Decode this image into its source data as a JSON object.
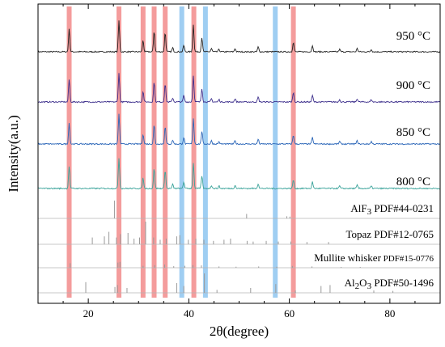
{
  "chart_data": {
    "type": "line",
    "title": "",
    "xlabel": "2θ(degree)",
    "ylabel": "Intensity(a.u.)",
    "xlim": [
      10,
      90
    ],
    "x_ticks": [
      20,
      40,
      60,
      80
    ],
    "y_ticks_shown": false,
    "grid": false,
    "legend": "none",
    "highlight_bands": [
      {
        "x": 16.2,
        "color": "#f28b8b"
      },
      {
        "x": 26.1,
        "color": "#f28b8b"
      },
      {
        "x": 30.9,
        "color": "#f28b8b"
      },
      {
        "x": 33.1,
        "color": "#f28b8b"
      },
      {
        "x": 35.3,
        "color": "#f28b8b"
      },
      {
        "x": 38.6,
        "color": "#8ec5f0"
      },
      {
        "x": 41.0,
        "color": "#f28b8b"
      },
      {
        "x": 43.3,
        "color": "#8ec5f0"
      },
      {
        "x": 57.2,
        "color": "#8ec5f0"
      },
      {
        "x": 60.8,
        "color": "#f28b8b"
      }
    ],
    "series": [
      {
        "name": "950 °C",
        "color": "#222222",
        "peaks": [
          {
            "x": 16.2,
            "h": 28
          },
          {
            "x": 26.1,
            "h": 38
          },
          {
            "x": 30.9,
            "h": 14
          },
          {
            "x": 33.1,
            "h": 26
          },
          {
            "x": 35.3,
            "h": 24
          },
          {
            "x": 36.8,
            "h": 5
          },
          {
            "x": 39.0,
            "h": 8
          },
          {
            "x": 40.9,
            "h": 34
          },
          {
            "x": 42.6,
            "h": 18
          },
          {
            "x": 44.5,
            "h": 4
          },
          {
            "x": 46.0,
            "h": 3
          },
          {
            "x": 49.2,
            "h": 4
          },
          {
            "x": 53.8,
            "h": 6
          },
          {
            "x": 60.8,
            "h": 12
          },
          {
            "x": 64.6,
            "h": 8
          },
          {
            "x": 70.0,
            "h": 3
          },
          {
            "x": 73.5,
            "h": 4
          },
          {
            "x": 76.3,
            "h": 3
          }
        ]
      },
      {
        "name": "900 °C",
        "color": "#3d2f8c",
        "peaks": [
          {
            "x": 16.2,
            "h": 28
          },
          {
            "x": 26.1,
            "h": 36
          },
          {
            "x": 30.9,
            "h": 13
          },
          {
            "x": 33.1,
            "h": 25
          },
          {
            "x": 35.3,
            "h": 23
          },
          {
            "x": 36.8,
            "h": 5
          },
          {
            "x": 39.0,
            "h": 8
          },
          {
            "x": 40.9,
            "h": 33
          },
          {
            "x": 42.6,
            "h": 17
          },
          {
            "x": 44.5,
            "h": 4
          },
          {
            "x": 46.0,
            "h": 3
          },
          {
            "x": 49.2,
            "h": 4
          },
          {
            "x": 53.8,
            "h": 6
          },
          {
            "x": 60.8,
            "h": 12
          },
          {
            "x": 64.6,
            "h": 8
          },
          {
            "x": 70.0,
            "h": 3
          },
          {
            "x": 73.5,
            "h": 4
          },
          {
            "x": 76.3,
            "h": 3
          }
        ]
      },
      {
        "name": "850 °C",
        "color": "#2b66b8",
        "peaks": [
          {
            "x": 16.2,
            "h": 26
          },
          {
            "x": 26.1,
            "h": 37
          },
          {
            "x": 30.9,
            "h": 12
          },
          {
            "x": 33.1,
            "h": 24
          },
          {
            "x": 35.3,
            "h": 22
          },
          {
            "x": 36.8,
            "h": 5
          },
          {
            "x": 39.0,
            "h": 8
          },
          {
            "x": 40.9,
            "h": 32
          },
          {
            "x": 42.6,
            "h": 16
          },
          {
            "x": 44.5,
            "h": 4
          },
          {
            "x": 46.0,
            "h": 3
          },
          {
            "x": 49.2,
            "h": 4
          },
          {
            "x": 53.8,
            "h": 6
          },
          {
            "x": 60.8,
            "h": 11
          },
          {
            "x": 64.6,
            "h": 8
          },
          {
            "x": 70.0,
            "h": 3
          },
          {
            "x": 73.5,
            "h": 4
          },
          {
            "x": 76.3,
            "h": 3
          }
        ]
      },
      {
        "name": "800 °C",
        "color": "#3aa39a",
        "peaks": [
          {
            "x": 16.2,
            "h": 28
          },
          {
            "x": 26.1,
            "h": 38
          },
          {
            "x": 30.9,
            "h": 13
          },
          {
            "x": 33.1,
            "h": 25
          },
          {
            "x": 35.3,
            "h": 23
          },
          {
            "x": 36.8,
            "h": 5
          },
          {
            "x": 39.0,
            "h": 8
          },
          {
            "x": 40.9,
            "h": 32
          },
          {
            "x": 42.6,
            "h": 16
          },
          {
            "x": 44.5,
            "h": 4
          },
          {
            "x": 46.0,
            "h": 3
          },
          {
            "x": 49.2,
            "h": 4
          },
          {
            "x": 53.8,
            "h": 6
          },
          {
            "x": 60.8,
            "h": 11
          },
          {
            "x": 64.6,
            "h": 8
          },
          {
            "x": 70.0,
            "h": 3
          },
          {
            "x": 73.5,
            "h": 4
          },
          {
            "x": 76.3,
            "h": 3
          }
        ]
      }
    ],
    "reference_patterns": [
      {
        "name": "AlF3 PDF#44-0231",
        "label_main": "AlF",
        "label_sub": "3",
        "label_rest": "PDF#44-0231",
        "sticks": [
          {
            "x": 25.2,
            "h": 1.0
          },
          {
            "x": 51.5,
            "h": 0.25
          },
          {
            "x": 59.5,
            "h": 0.12
          },
          {
            "x": 60.1,
            "h": 0.1
          }
        ]
      },
      {
        "name": "Topaz PDF#12-0765",
        "label_main": "Topaz PDF#12-0765",
        "sticks": [
          {
            "x": 20.8,
            "h": 0.3
          },
          {
            "x": 23.2,
            "h": 0.35
          },
          {
            "x": 24.1,
            "h": 0.55
          },
          {
            "x": 25.6,
            "h": 0.3
          },
          {
            "x": 26.4,
            "h": 0.45
          },
          {
            "x": 27.9,
            "h": 0.5
          },
          {
            "x": 29.1,
            "h": 0.25
          },
          {
            "x": 30.2,
            "h": 0.3
          },
          {
            "x": 31.4,
            "h": 1.0
          },
          {
            "x": 33.0,
            "h": 0.3
          },
          {
            "x": 34.3,
            "h": 0.2
          },
          {
            "x": 35.5,
            "h": 0.25
          },
          {
            "x": 37.6,
            "h": 0.35
          },
          {
            "x": 38.2,
            "h": 0.4
          },
          {
            "x": 39.9,
            "h": 0.2
          },
          {
            "x": 41.4,
            "h": 0.25
          },
          {
            "x": 43.0,
            "h": 0.2
          },
          {
            "x": 44.9,
            "h": 0.15
          },
          {
            "x": 47.0,
            "h": 0.2
          },
          {
            "x": 48.3,
            "h": 0.25
          },
          {
            "x": 51.6,
            "h": 0.15
          },
          {
            "x": 52.8,
            "h": 0.12
          },
          {
            "x": 55.4,
            "h": 0.15
          },
          {
            "x": 57.8,
            "h": 0.12
          },
          {
            "x": 60.3,
            "h": 0.12
          },
          {
            "x": 63.5,
            "h": 0.1
          },
          {
            "x": 67.8,
            "h": 0.1
          }
        ]
      },
      {
        "name": "Mullite whisker PDF#15-0776",
        "label_main": "Mullite whisker",
        "label_rest": "PDF#15-0776",
        "sticks": [
          {
            "x": 16.4,
            "h": 0.35
          },
          {
            "x": 25.9,
            "h": 0.4
          },
          {
            "x": 26.3,
            "h": 0.45
          },
          {
            "x": 30.9,
            "h": 0.15
          },
          {
            "x": 33.2,
            "h": 0.2
          },
          {
            "x": 35.2,
            "h": 0.25
          },
          {
            "x": 37.0,
            "h": 0.12
          },
          {
            "x": 39.2,
            "h": 0.15
          },
          {
            "x": 40.8,
            "h": 0.2
          },
          {
            "x": 42.5,
            "h": 0.18
          },
          {
            "x": 46.0,
            "h": 0.1
          },
          {
            "x": 49.4,
            "h": 0.08
          },
          {
            "x": 53.9,
            "h": 0.1
          },
          {
            "x": 57.5,
            "h": 0.08
          },
          {
            "x": 60.6,
            "h": 0.14
          },
          {
            "x": 64.5,
            "h": 0.1
          },
          {
            "x": 70.3,
            "h": 0.06
          },
          {
            "x": 74.1,
            "h": 0.06
          }
        ]
      },
      {
        "name": "Al2O3 PDF#50-1496",
        "label_main": "Al",
        "label_sub": "2",
        "label_mid": "O",
        "label_sub2": "3",
        "label_rest": "PDF#50-1496",
        "sticks": [
          {
            "x": 19.5,
            "h": 0.55
          },
          {
            "x": 25.3,
            "h": 0.3
          },
          {
            "x": 25.8,
            "h": 0.4
          },
          {
            "x": 27.7,
            "h": 0.25
          },
          {
            "x": 37.6,
            "h": 0.5
          },
          {
            "x": 39.0,
            "h": 0.35
          },
          {
            "x": 43.1,
            "h": 1.0
          },
          {
            "x": 45.6,
            "h": 0.15
          },
          {
            "x": 52.3,
            "h": 0.25
          },
          {
            "x": 57.3,
            "h": 0.45
          },
          {
            "x": 61.2,
            "h": 0.12
          },
          {
            "x": 66.3,
            "h": 0.35
          },
          {
            "x": 68.1,
            "h": 0.4
          },
          {
            "x": 76.8,
            "h": 0.12
          },
          {
            "x": 80.6,
            "h": 0.1
          }
        ]
      }
    ]
  }
}
